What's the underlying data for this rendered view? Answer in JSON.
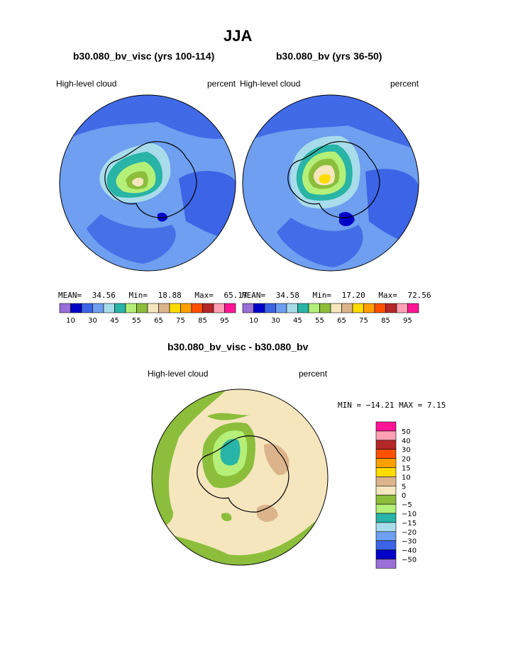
{
  "page": {
    "title": "JJA",
    "subtitle_left": "b30.080_bv_visc (yrs 100-114)",
    "subtitle_right": "b30.080_bv (yrs 36-50)",
    "diff_title": "b30.080_bv_visc - b30.080_bv"
  },
  "panels": {
    "left": {
      "variable": "High-level cloud",
      "units": "percent",
      "stats": {
        "mean_label": "MEAN=",
        "mean": "34.56",
        "min_label": "Min=",
        "min": "18.88",
        "max_label": "Max=",
        "max": "65.17"
      }
    },
    "right": {
      "variable": "High-level cloud",
      "units": "percent",
      "stats": {
        "mean_label": "MEAN=",
        "mean": "34.58",
        "min_label": "Min=",
        "min": "17.20",
        "max_label": "Max=",
        "max": "72.56"
      }
    },
    "diff": {
      "variable": "High-level cloud",
      "units": "percent",
      "minmax": "MIN = −14.21 MAX =    7.15"
    }
  },
  "colorbar_top": {
    "colors": [
      "#9a6fd6",
      "#0000c8",
      "#3c64e6",
      "#6e9ff0",
      "#a8dcea",
      "#28b4a6",
      "#b4f078",
      "#8cbe3c",
      "#f5e6be",
      "#dcb48c",
      "#ffdc00",
      "#ffa000",
      "#ff5000",
      "#b42828",
      "#ffa0b4",
      "#ff1496"
    ],
    "labels": [
      "10",
      "30",
      "45",
      "55",
      "65",
      "75",
      "85",
      "95"
    ]
  },
  "colorbar_diff": {
    "colors": [
      "#ff1496",
      "#ffa0b4",
      "#b42828",
      "#ff5000",
      "#ffa000",
      "#ffdc00",
      "#dcb48c",
      "#f5e6be",
      "#8cbe3c",
      "#b4f078",
      "#28b4a6",
      "#a8dcea",
      "#6e9ff0",
      "#3c64e6",
      "#0000c8",
      "#9a6fd6"
    ],
    "labels": [
      "50",
      "40",
      "30",
      "20",
      "15",
      "10",
      "5",
      "0",
      "−5",
      "−10",
      "−15",
      "−20",
      "−30",
      "−40",
      "−50"
    ]
  }
}
